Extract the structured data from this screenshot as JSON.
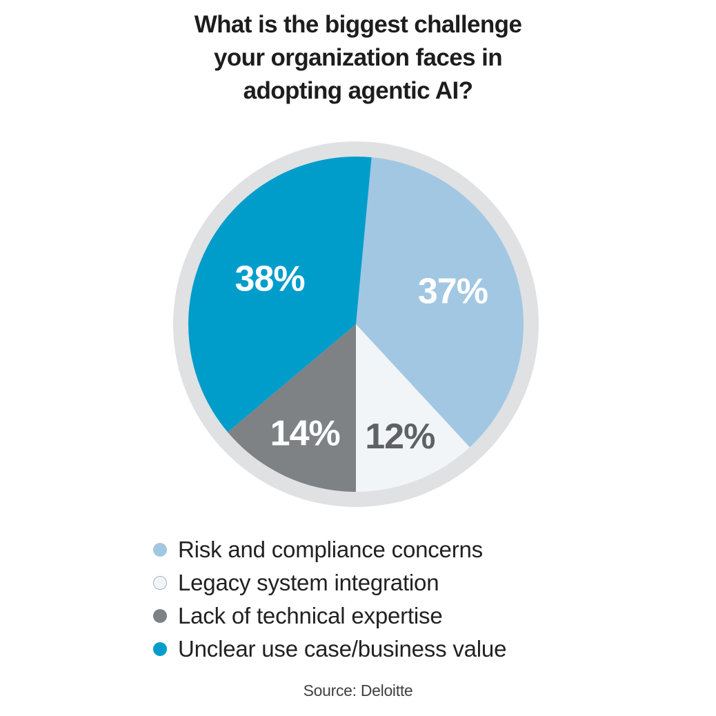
{
  "header": {
    "title_lines": [
      "What is the biggest challenge",
      "your organization faces in",
      "adopting agentic AI?"
    ]
  },
  "chart_data": {
    "type": "pie",
    "title": "What is the biggest challenge your organization faces in adopting agentic AI?",
    "legend_position": "bottom-left",
    "start_angle_deg": 5.35,
    "total_shown": 101,
    "ring_color": "#dfe1e3",
    "slices": [
      {
        "id": "risk-and-compliance",
        "label": "Risk and compliance concerns",
        "value": 37,
        "value_label": "37%",
        "color": "#a2c7e3",
        "value_label_color": "#ffffff",
        "label_radius_factor": 0.61
      },
      {
        "id": "legacy-system-integration",
        "label": "Legacy system integration",
        "value": 12,
        "value_label": "12%",
        "color": "#f1f5f8",
        "value_label_color": "#5f6164",
        "label_radius_factor": 0.72,
        "swatch_border_color": "#aab0b5"
      },
      {
        "id": "lack-of-technical-expertise",
        "label": "Lack of technical expertise",
        "value": 14,
        "value_label": "14%",
        "color": "#7f8285",
        "value_label_color": "#ffffff",
        "label_radius_factor": 0.72
      },
      {
        "id": "unclear-use-case-business-value",
        "label": "Unclear use case/business value",
        "value": 38,
        "value_label": "38%",
        "color": "#009dcb",
        "value_label_color": "#ffffff",
        "label_radius_factor": 0.58
      }
    ]
  },
  "footer": {
    "source": "Source: Deloitte"
  }
}
